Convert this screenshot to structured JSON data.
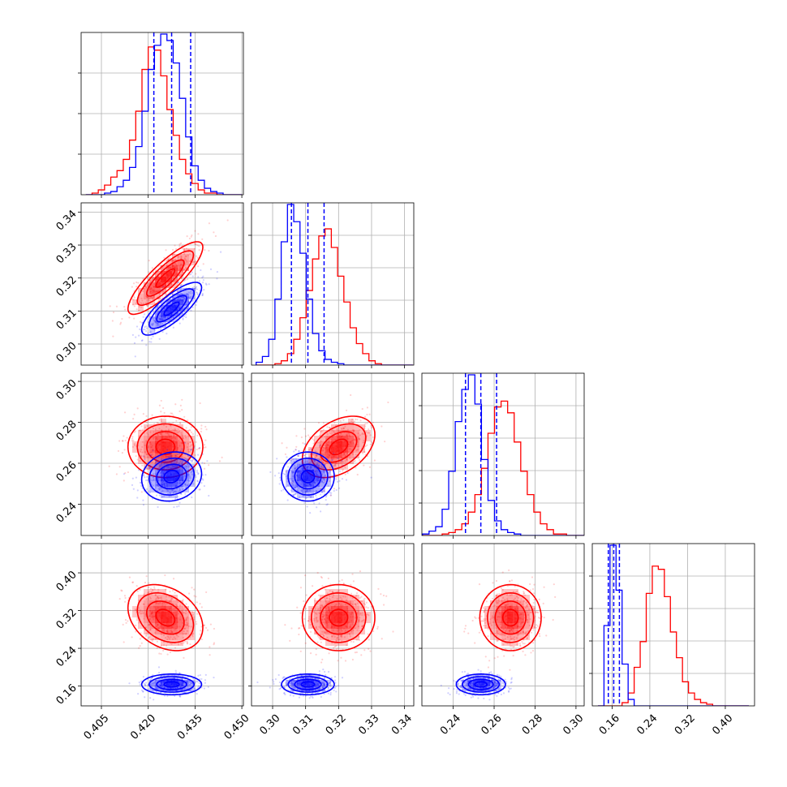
{
  "chart_data": {
    "type": "corner",
    "grid": true,
    "series": [
      {
        "name": "",
        "color": "#0000ff"
      },
      {
        "name": "",
        "color": "#ff0000"
      }
    ],
    "parameters": [
      {
        "ticks": [
          0.405,
          0.42,
          0.435,
          0.45
        ],
        "tick_labels": [
          "0.405",
          "0.420",
          "0.435",
          "0.450"
        ],
        "range": [
          0.3985,
          0.4505
        ]
      },
      {
        "ticks": [
          0.3,
          0.31,
          0.32,
          0.33,
          0.34
        ],
        "tick_labels": [
          "0.30",
          "0.31",
          "0.32",
          "0.33",
          "0.34"
        ],
        "range": [
          0.2936,
          0.3428
        ]
      },
      {
        "ticks": [
          0.24,
          0.26,
          0.28,
          0.3
        ],
        "tick_labels": [
          "0.24",
          "0.26",
          "0.28",
          "0.30"
        ],
        "range": [
          0.2247,
          0.304
        ]
      },
      {
        "ticks": [
          0.16,
          0.24,
          0.32,
          0.4
        ],
        "tick_labels": [
          "0.16",
          "0.24",
          "0.32",
          "0.40"
        ],
        "range": [
          0.118,
          0.462
        ]
      }
    ],
    "histogram_ticks": [
      [
        0.25,
        0.5,
        0.75
      ],
      [
        0.2,
        0.4,
        0.6,
        0.8
      ],
      [
        0.2,
        0.4,
        0.6,
        0.8
      ],
      [
        0.2,
        0.4,
        0.6,
        0.8
      ]
    ],
    "quantiles": [
      [
        0.4218,
        0.4275,
        0.4336
      ],
      [
        0.3057,
        0.3107,
        0.3156
      ],
      [
        0.246,
        0.2535,
        0.2612
      ],
      [
        0.152,
        0.1635,
        0.1755
      ]
    ],
    "histograms": {
      "blue": [
        {
          "bin_edges_range": [
            0.4,
            0.45
          ],
          "bins": 25,
          "counts": [
            0,
            0,
            0,
            1,
            2,
            5,
            9,
            17,
            30,
            52,
            78,
            93,
            100,
            96,
            82,
            60,
            36,
            18,
            9,
            4,
            2,
            1,
            0,
            0,
            0
          ]
        },
        {
          "bin_edges_range": [
            0.295,
            0.3425
          ],
          "bins": 25,
          "counts": [
            2,
            6,
            18,
            46,
            86,
            112,
            100,
            78,
            46,
            22,
            10,
            4,
            2,
            1,
            0,
            0,
            0,
            0,
            0,
            0,
            0,
            0,
            0,
            0,
            0
          ]
        },
        {
          "bin_edges_range": [
            0.225,
            0.305
          ],
          "bins": 25,
          "counts": [
            1,
            3,
            6,
            18,
            44,
            78,
            100,
            110,
            90,
            52,
            24,
            10,
            4,
            2,
            1,
            0,
            0,
            0,
            0,
            0,
            0,
            0,
            0,
            0,
            0
          ]
        },
        {
          "bin_edges_range": [
            0.13,
            0.45
          ],
          "bins": 25,
          "counts": [
            0,
            50,
            100,
            72,
            26,
            4,
            0,
            0,
            0,
            0,
            0,
            0,
            0,
            0,
            0,
            0,
            0,
            0,
            0,
            0,
            0,
            0,
            0,
            0,
            0
          ]
        }
      ],
      "red": [
        {
          "bin_edges_range": [
            0.4,
            0.45
          ],
          "bins": 25,
          "counts": [
            0,
            1,
            3,
            6,
            11,
            15,
            22,
            34,
            52,
            78,
            92,
            90,
            74,
            53,
            37,
            22,
            13,
            7,
            3,
            1,
            1,
            0,
            0,
            0,
            0
          ]
        },
        {
          "bin_edges_range": [
            0.295,
            0.3425
          ],
          "bins": 25,
          "counts": [
            0,
            0,
            0,
            1,
            3,
            8,
            18,
            33,
            52,
            74,
            90,
            95,
            82,
            62,
            44,
            26,
            15,
            8,
            3,
            1,
            0,
            0,
            0,
            0,
            0
          ]
        },
        {
          "bin_edges_range": [
            0.225,
            0.305
          ],
          "bins": 25,
          "counts": [
            0,
            0,
            0,
            1,
            2,
            4,
            8,
            16,
            28,
            46,
            70,
            88,
            92,
            84,
            64,
            44,
            28,
            16,
            8,
            4,
            1,
            1,
            0,
            0,
            0
          ]
        },
        {
          "bin_edges_range": [
            0.13,
            0.45
          ],
          "bins": 25,
          "counts": [
            0,
            0,
            0,
            0,
            2,
            8,
            24,
            40,
            70,
            87,
            85,
            68,
            46,
            30,
            15,
            8,
            4,
            2,
            1,
            0,
            0,
            0,
            0,
            0,
            0
          ]
        }
      ]
    },
    "gaussians_2d": {
      "blue": {
        "mean": [
          0.4275,
          0.3107,
          0.2535,
          0.1635
        ],
        "sd": [
          0.0048,
          0.004,
          0.006,
          0.011
        ],
        "corr": {
          "0-1": 0.8,
          "0-2": 0.12,
          "0-3": 0.0,
          "1-2": 0.0,
          "1-3": 0.0,
          "2-3": 0.0
        }
      },
      "red": {
        "mean": [
          0.4255,
          0.32,
          0.268,
          0.305
        ],
        "sd": [
          0.006,
          0.0055,
          0.0075,
          0.035
        ],
        "corr": {
          "0-1": 0.85,
          "0-2": 0.0,
          "0-3": -0.3,
          "1-2": 0.4,
          "1-3": 0.0,
          "2-3": 0.0
        }
      }
    }
  }
}
